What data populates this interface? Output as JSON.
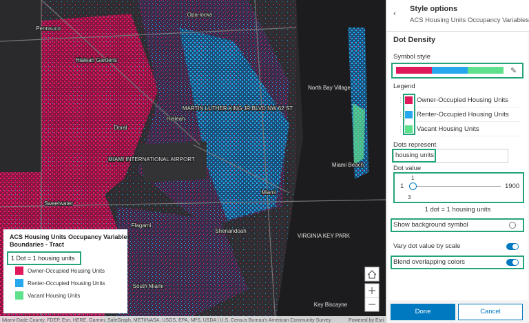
{
  "map": {
    "place_labels": [
      "Pennsuco",
      "Opa-locka",
      "Hialeah Gardens",
      "Hialeah",
      "Doral",
      "MIAMI INTERNATIONAL AIRPORT",
      "MARTIN LUTHER KING JR BLVD NW 62 ST",
      "North Bay Village",
      "Miami Beach",
      "Miami",
      "Sweetwater",
      "Flagami",
      "Shenandoah",
      "VIRGINIA KEY PARK",
      "South Miami",
      "Key Biscayne"
    ],
    "legend": {
      "title_lines": [
        "ACS Housing Units Occupancy Variables -",
        "Boundaries - Tract"
      ],
      "dot_ratio": "1 Dot = 1 housing units",
      "items": [
        {
          "label": "Owner-Occupied Housing Units",
          "color": "#e0195a"
        },
        {
          "label": "Renter-Occupied Housing Units",
          "color": "#27a8ee"
        },
        {
          "label": "Vacant Housing Units",
          "color": "#5fe08c"
        }
      ]
    },
    "attribution": "Miami-Dade County, FDEP, Esri, HERE, Garmin, SafeGraph, METI/NASA, USGS, EPA, NPS, USDA | U.S. Census Bureau's American Community Survey",
    "powered_by": "Powered by Esri"
  },
  "panel": {
    "title": "Style options",
    "subtitle": "ACS Housing Units Occupancy Variables...",
    "section": "Dot Density",
    "symbol_style_label": "Symbol style",
    "legend_label": "Legend",
    "legend_items": [
      "Owner-Occupied Housing Units",
      "Renter-Occupied Housing Units",
      "Vacant Housing Units"
    ],
    "dots_represent_label": "Dots represent",
    "dots_represent_value": "housing units",
    "dot_value_label": "Dot value",
    "slider": {
      "min": 1,
      "max": 1900,
      "value": 1,
      "lower_value": 3
    },
    "summary": "1 dot = 1 housing units",
    "toggles": [
      {
        "label": "Show background symbol",
        "on": false
      },
      {
        "label": "Vary dot value by scale",
        "on": true
      },
      {
        "label": "Blend overlapping colors",
        "on": true
      }
    ],
    "buttons": [
      "Done",
      "Cancel"
    ]
  }
}
